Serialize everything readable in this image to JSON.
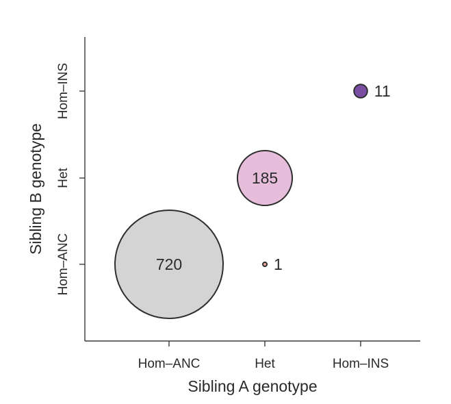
{
  "chart_data": {
    "type": "scatter",
    "title": "",
    "xlabel": "Sibling A genotype",
    "ylabel": "Sibling B genotype",
    "x_categories": [
      "Hom–ANC",
      "Het",
      "Hom–INS"
    ],
    "y_categories": [
      "Hom–ANC",
      "Het",
      "Hom–INS"
    ],
    "grid": false,
    "points": [
      {
        "x": "Hom–ANC",
        "y": "Hom–ANC",
        "count": 720,
        "label": "720",
        "color": "#d4d4d4",
        "label_position": "inside"
      },
      {
        "x": "Het",
        "y": "Het",
        "count": 185,
        "label": "185",
        "color": "#e6bedc",
        "label_position": "inside"
      },
      {
        "x": "Het",
        "y": "Hom–ANC",
        "count": 1,
        "label": "1",
        "color": "#e8a89a",
        "label_position": "right"
      },
      {
        "x": "Hom–INS",
        "y": "Hom–INS",
        "count": 11,
        "label": "11",
        "color": "#7a4fa3",
        "label_position": "right"
      }
    ]
  }
}
